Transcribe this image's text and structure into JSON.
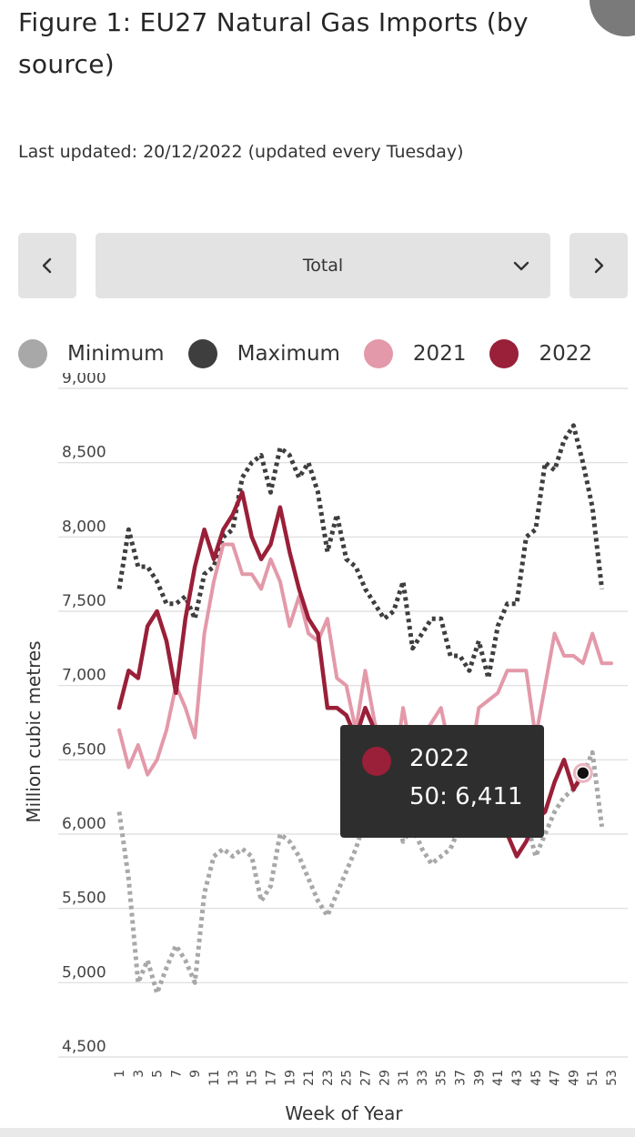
{
  "header": {
    "title": "Figure 1: EU27 Natural Gas Imports (by source)",
    "last_updated": "Last updated: 20/12/2022 (updated every Tuesday)"
  },
  "controls": {
    "prev_icon": "chevron-left-icon",
    "next_icon": "chevron-right-icon",
    "dropdown_value": "Total",
    "dropdown_icon": "chevron-down-icon"
  },
  "colors": {
    "minimum": "#a8a8a8",
    "maximum": "#3e3e3e",
    "y2021": "#e399a9",
    "y2022": "#9a1f38"
  },
  "tooltip": {
    "series": "2022",
    "value": "50: 6,411"
  },
  "chart_data": {
    "type": "line",
    "xlabel": "Week of Year",
    "ylabel": "Million cubic metres",
    "ylim": [
      4500,
      9000
    ],
    "yticks": [
      4500,
      5000,
      5500,
      6000,
      6500,
      7000,
      7500,
      8000,
      8500,
      9000
    ],
    "ytick_labels": [
      "4,500",
      "5,000",
      "5,500",
      "6,000",
      "6,500",
      "7,000",
      "7,500",
      "8,000",
      "8,500",
      "9,000"
    ],
    "xlim": [
      1,
      53
    ],
    "xticks": [
      1,
      3,
      5,
      7,
      9,
      11,
      13,
      15,
      17,
      19,
      21,
      23,
      25,
      27,
      29,
      31,
      33,
      35,
      37,
      39,
      41,
      43,
      45,
      47,
      49,
      51,
      53
    ],
    "grid": true,
    "legend_position": "top",
    "series": [
      {
        "name": "Minimum",
        "style": "dotted",
        "x": [
          1,
          2,
          3,
          4,
          5,
          6,
          7,
          8,
          9,
          10,
          11,
          12,
          13,
          14,
          15,
          16,
          17,
          18,
          19,
          20,
          21,
          22,
          23,
          24,
          25,
          26,
          27,
          28,
          29,
          30,
          31,
          32,
          33,
          34,
          35,
          36,
          37,
          38,
          39,
          40,
          41,
          42,
          43,
          44,
          45,
          46,
          47,
          48,
          49,
          50,
          51,
          52
        ],
        "values": [
          6150,
          5700,
          5000,
          5150,
          4930,
          5100,
          5250,
          5150,
          5000,
          5600,
          5850,
          5900,
          5850,
          5900,
          5850,
          5550,
          5650,
          6000,
          5950,
          5850,
          5700,
          5550,
          5450,
          5600,
          5750,
          5900,
          6100,
          6200,
          6300,
          6150,
          5950,
          6050,
          5900,
          5800,
          5850,
          5900,
          6050,
          6150,
          6200,
          6100,
          6150,
          6200,
          6150,
          6100,
          5850,
          6000,
          6150,
          6250,
          6300,
          6400,
          6550,
          6050
        ]
      },
      {
        "name": "Maximum",
        "style": "dotted",
        "x": [
          1,
          2,
          3,
          4,
          5,
          6,
          7,
          8,
          9,
          10,
          11,
          12,
          13,
          14,
          15,
          16,
          17,
          18,
          19,
          20,
          21,
          22,
          23,
          24,
          25,
          26,
          27,
          28,
          29,
          30,
          31,
          32,
          33,
          34,
          35,
          36,
          37,
          38,
          39,
          40,
          41,
          42,
          43,
          44,
          45,
          46,
          47,
          48,
          49,
          50,
          51,
          52
        ],
        "values": [
          7650,
          8050,
          7800,
          7800,
          7700,
          7550,
          7550,
          7600,
          7450,
          7750,
          7800,
          8000,
          8050,
          8400,
          8500,
          8550,
          8300,
          8600,
          8550,
          8400,
          8500,
          8300,
          7900,
          8150,
          7850,
          7800,
          7650,
          7550,
          7450,
          7500,
          7700,
          7250,
          7350,
          7450,
          7450,
          7200,
          7200,
          7100,
          7300,
          7050,
          7400,
          7550,
          7550,
          8000,
          8050,
          8500,
          8450,
          8650,
          8750,
          8500,
          8200,
          7650
        ]
      },
      {
        "name": "2021",
        "style": "solid",
        "x": [
          1,
          2,
          3,
          4,
          5,
          6,
          7,
          8,
          9,
          10,
          11,
          12,
          13,
          14,
          15,
          16,
          17,
          18,
          19,
          20,
          21,
          22,
          23,
          24,
          25,
          26,
          27,
          28,
          29,
          30,
          31,
          32,
          33,
          34,
          35,
          36,
          37,
          38,
          39,
          40,
          41,
          42,
          43,
          44,
          45,
          46,
          47,
          48,
          49,
          50,
          51,
          52,
          53
        ],
        "values": [
          6700,
          6450,
          6600,
          6400,
          6500,
          6700,
          7000,
          6850,
          6650,
          7350,
          7700,
          7950,
          7950,
          7750,
          7750,
          7650,
          7850,
          7700,
          7400,
          7600,
          7350,
          7300,
          7450,
          7050,
          7000,
          6700,
          7100,
          6750,
          6600,
          6400,
          6850,
          6500,
          6650,
          6750,
          6850,
          6550,
          6650,
          6450,
          6850,
          6900,
          6950,
          7100,
          7100,
          7100,
          6650,
          7000,
          7350,
          7200,
          7200,
          7150,
          7350,
          7150,
          7150
        ]
      },
      {
        "name": "2022",
        "style": "solid",
        "x": [
          1,
          2,
          3,
          4,
          5,
          6,
          7,
          8,
          9,
          10,
          11,
          12,
          13,
          14,
          15,
          16,
          17,
          18,
          19,
          20,
          21,
          22,
          23,
          24,
          25,
          26,
          27,
          28,
          29,
          30,
          31,
          32,
          33,
          34,
          35,
          36,
          37,
          38,
          39,
          40,
          41,
          42,
          43,
          44,
          45,
          46,
          47,
          48,
          49,
          50
        ],
        "values": [
          6850,
          7100,
          7050,
          7400,
          7500,
          7300,
          6950,
          7450,
          7800,
          8050,
          7850,
          8050,
          8150,
          8300,
          8000,
          7850,
          7950,
          8200,
          7900,
          7650,
          7450,
          7350,
          6850,
          6850,
          6800,
          6650,
          6850,
          6700,
          6500,
          6350,
          6400,
          6250,
          6350,
          6200,
          6100,
          6050,
          6000,
          6100,
          6050,
          6050,
          6150,
          6000,
          5850,
          5950,
          6100,
          6150,
          6350,
          6500,
          6300,
          6411
        ]
      }
    ],
    "highlight": {
      "series": "2022",
      "x": 50,
      "y": 6411
    }
  }
}
